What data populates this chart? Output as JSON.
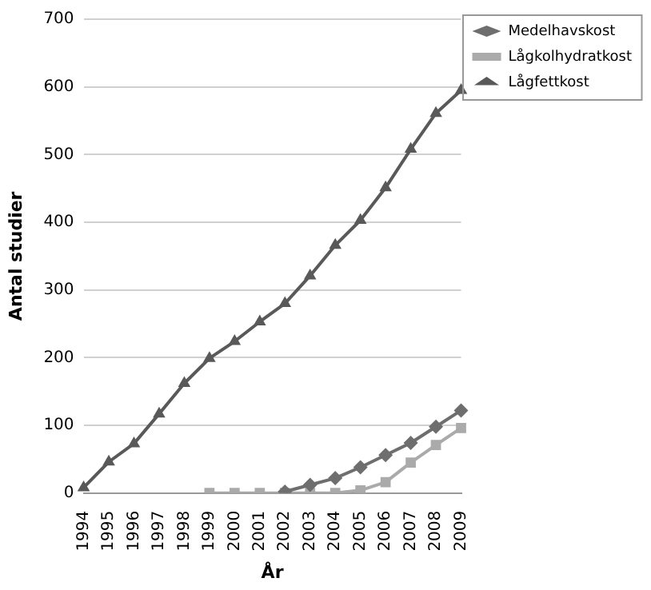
{
  "chart_data": {
    "type": "line",
    "xlabel": "År",
    "ylabel": "Antal studier",
    "categories": [
      "1994",
      "1995",
      "1996",
      "1997",
      "1998",
      "1999",
      "2000",
      "2001",
      "2002",
      "2003",
      "2004",
      "2005",
      "2006",
      "2007",
      "2008",
      "2009"
    ],
    "series": [
      {
        "name": "Medelhavskost",
        "color": "#6e6e6e",
        "marker": "diamond",
        "values": [
          null,
          null,
          null,
          null,
          null,
          null,
          null,
          null,
          2,
          12,
          22,
          38,
          56,
          74,
          98,
          122
        ]
      },
      {
        "name": "Lågkolhydratkost",
        "color": "#aaaaaa",
        "marker": "square",
        "values": [
          null,
          null,
          null,
          null,
          null,
          0,
          0,
          0,
          0,
          0,
          0,
          4,
          16,
          45,
          71,
          96
        ]
      },
      {
        "name": "Lågfettkost",
        "color": "#595959",
        "marker": "triangle",
        "values": [
          8,
          46,
          73,
          117,
          162,
          199,
          224,
          253,
          280,
          321,
          366,
          403,
          451,
          508,
          561,
          595
        ]
      }
    ],
    "ylim": [
      0,
      700
    ],
    "yticks": [
      0,
      100,
      200,
      300,
      400,
      500,
      600,
      700
    ],
    "grid": "y",
    "legend": "top right",
    "line_style": "solid"
  }
}
